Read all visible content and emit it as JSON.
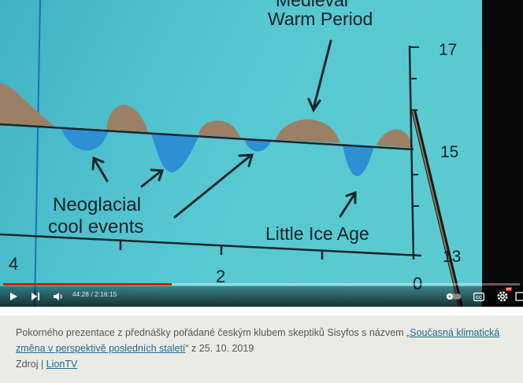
{
  "video": {
    "chart_labels": {
      "top_label_partial": "Medieval",
      "warm_period": "Warm Period",
      "neoglacial": "Neoglacial",
      "cool_events": "cool events",
      "little_ice_age": "Little Ice Age",
      "y_tick_top": "17",
      "y_tick_mid": "15",
      "y_tick_bottom": "13",
      "x_tick_left": "4",
      "x_tick_mid": "2",
      "x_tick_right": "0"
    },
    "chart_colors": {
      "background": "#4ec3cf",
      "warm": "#9b8066",
      "cool": "#2e8fd4",
      "line": "#17262e"
    }
  },
  "player": {
    "time": "44:28 / 2:16:15",
    "progress": 0.326,
    "icons": {
      "play": "play-icon",
      "next": "next-icon",
      "volume": "volume-icon",
      "autoplay": "autoplay-toggle-icon",
      "subtitles": "subtitles-icon",
      "settings": "settings-icon",
      "hd_badge": "HD",
      "miniplayer": "miniplayer-icon"
    }
  },
  "caption": {
    "text_before": "Pokorného prezentace z přednášky pořádané českým klubem skeptiků Sisyfos s názvem ",
    "open_quote": "„",
    "link_text": "Současná klimatická změna v perspektivě posledních staletí",
    "text_after": "“ z 25. 10. 2019",
    "source_label": "Zdroj",
    "separator": "|",
    "source_link": "LionTV"
  }
}
